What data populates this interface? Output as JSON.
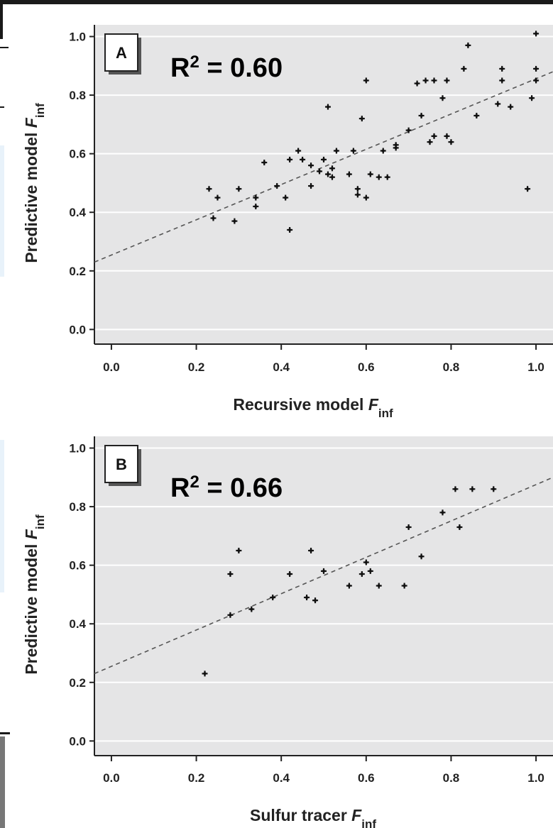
{
  "chart_data": [
    {
      "type": "scatter",
      "panel_label": "A",
      "annotation": {
        "r2_prefix": "R",
        "r2_exp": "2",
        "r2_suffix": " = 0.60"
      },
      "xlabel": {
        "main": "Recursive model ",
        "italic": "F",
        "sub": "inf"
      },
      "ylabel": {
        "main": "Predictive model ",
        "italic": "F",
        "sub": "inf"
      },
      "xlim": [
        -0.04,
        1.04
      ],
      "ylim": [
        -0.05,
        1.04
      ],
      "x_ticks": [
        "0.0",
        "0.2",
        "0.4",
        "0.6",
        "0.8",
        "1.0"
      ],
      "y_ticks": [
        "0.0",
        "0.2",
        "0.4",
        "0.6",
        "0.8",
        "1.0"
      ],
      "grid": "horizontal",
      "trend_line": {
        "style": "dashed",
        "points": [
          [
            -0.04,
            0.23
          ],
          [
            1.04,
            0.88
          ]
        ]
      },
      "points": [
        [
          0.23,
          0.48
        ],
        [
          0.24,
          0.38
        ],
        [
          0.25,
          0.45
        ],
        [
          0.29,
          0.37
        ],
        [
          0.3,
          0.48
        ],
        [
          0.34,
          0.45
        ],
        [
          0.34,
          0.42
        ],
        [
          0.36,
          0.57
        ],
        [
          0.39,
          0.49
        ],
        [
          0.41,
          0.45
        ],
        [
          0.42,
          0.58
        ],
        [
          0.42,
          0.34
        ],
        [
          0.44,
          0.61
        ],
        [
          0.45,
          0.58
        ],
        [
          0.47,
          0.56
        ],
        [
          0.47,
          0.49
        ],
        [
          0.49,
          0.54
        ],
        [
          0.5,
          0.58
        ],
        [
          0.51,
          0.76
        ],
        [
          0.51,
          0.53
        ],
        [
          0.52,
          0.55
        ],
        [
          0.52,
          0.52
        ],
        [
          0.53,
          0.61
        ],
        [
          0.56,
          0.53
        ],
        [
          0.57,
          0.61
        ],
        [
          0.58,
          0.48
        ],
        [
          0.58,
          0.46
        ],
        [
          0.59,
          0.72
        ],
        [
          0.6,
          0.85
        ],
        [
          0.6,
          0.45
        ],
        [
          0.61,
          0.53
        ],
        [
          0.63,
          0.52
        ],
        [
          0.64,
          0.61
        ],
        [
          0.65,
          0.52
        ],
        [
          0.67,
          0.62
        ],
        [
          0.67,
          0.63
        ],
        [
          0.7,
          0.68
        ],
        [
          0.72,
          0.84
        ],
        [
          0.73,
          0.73
        ],
        [
          0.74,
          0.85
        ],
        [
          0.75,
          0.64
        ],
        [
          0.76,
          0.66
        ],
        [
          0.76,
          0.85
        ],
        [
          0.78,
          0.79
        ],
        [
          0.79,
          0.85
        ],
        [
          0.79,
          0.66
        ],
        [
          0.8,
          0.64
        ],
        [
          0.83,
          0.89
        ],
        [
          0.84,
          0.97
        ],
        [
          0.86,
          0.73
        ],
        [
          0.91,
          0.77
        ],
        [
          0.92,
          0.89
        ],
        [
          0.92,
          0.85
        ],
        [
          0.94,
          0.76
        ],
        [
          0.98,
          0.48
        ],
        [
          0.99,
          0.79
        ],
        [
          1.0,
          1.01
        ],
        [
          1.0,
          0.89
        ],
        [
          1.0,
          0.85
        ]
      ]
    },
    {
      "type": "scatter",
      "panel_label": "B",
      "annotation": {
        "r2_prefix": "R",
        "r2_exp": "2",
        "r2_suffix": " = 0.66"
      },
      "xlabel": {
        "main": "Sulfur tracer ",
        "italic": "F",
        "sub": "inf"
      },
      "ylabel": {
        "main": "Predictive model ",
        "italic": "F",
        "sub": "inf"
      },
      "xlim": [
        -0.04,
        1.04
      ],
      "ylim": [
        -0.05,
        1.04
      ],
      "x_ticks": [
        "0.0",
        "0.2",
        "0.4",
        "0.6",
        "0.8",
        "1.0"
      ],
      "y_ticks": [
        "0.0",
        "0.2",
        "0.4",
        "0.6",
        "0.8",
        "1.0"
      ],
      "grid": "horizontal",
      "trend_line": {
        "style": "dashed",
        "points": [
          [
            -0.04,
            0.23
          ],
          [
            1.04,
            0.9
          ]
        ]
      },
      "points": [
        [
          0.22,
          0.23
        ],
        [
          0.28,
          0.43
        ],
        [
          0.28,
          0.57
        ],
        [
          0.3,
          0.65
        ],
        [
          0.33,
          0.45
        ],
        [
          0.38,
          0.49
        ],
        [
          0.42,
          0.57
        ],
        [
          0.46,
          0.49
        ],
        [
          0.47,
          0.65
        ],
        [
          0.48,
          0.48
        ],
        [
          0.5,
          0.58
        ],
        [
          0.56,
          0.53
        ],
        [
          0.59,
          0.57
        ],
        [
          0.6,
          0.61
        ],
        [
          0.61,
          0.58
        ],
        [
          0.63,
          0.53
        ],
        [
          0.69,
          0.53
        ],
        [
          0.7,
          0.73
        ],
        [
          0.73,
          0.63
        ],
        [
          0.78,
          0.78
        ],
        [
          0.81,
          0.86
        ],
        [
          0.82,
          0.73
        ],
        [
          0.85,
          0.86
        ],
        [
          0.9,
          0.86
        ]
      ]
    }
  ]
}
